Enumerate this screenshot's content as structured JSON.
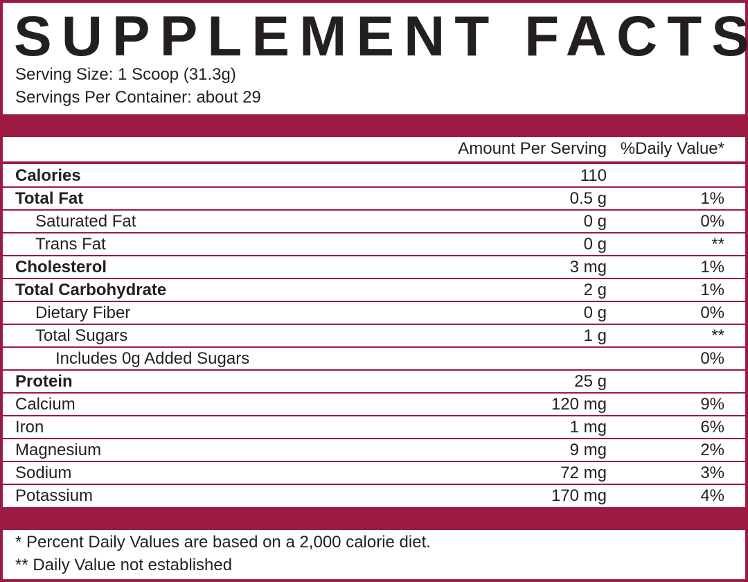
{
  "header": {
    "title": "SUPPLEMENT FACTS",
    "serving_size": "Serving Size: 1 Scoop (31.3g)",
    "servings_per_container": "Servings Per Container: about 29"
  },
  "table": {
    "columns": [
      "Amount Per Serving",
      "%Daily Value*"
    ],
    "rows": [
      [
        "Calories",
        "110",
        null
      ],
      [
        "Total Fat",
        "0.5 g",
        "1%"
      ],
      [
        "Saturated Fat",
        "0 g",
        "0%"
      ],
      [
        "Trans Fat",
        "0 g",
        "**"
      ],
      [
        "Cholesterol",
        "3 mg",
        "1%"
      ],
      [
        "Total Carbohydrate",
        "2 g",
        "1%"
      ],
      [
        "Dietary Fiber",
        "0 g",
        "0%"
      ],
      [
        "Total Sugars",
        "1 g",
        "**"
      ],
      [
        "Includes 0g Added Sugars",
        null,
        "0%"
      ],
      [
        "Protein",
        "25 g",
        null
      ],
      [
        "Calcium",
        "120 mg",
        "9%"
      ],
      [
        "Iron",
        "1 mg",
        "6%"
      ],
      [
        "Magnesium",
        "9 mg",
        "2%"
      ],
      [
        "Sodium",
        "72 mg",
        "3%"
      ],
      [
        "Potassium",
        "170 mg",
        "4%"
      ]
    ]
  },
  "footnotes": [
    "* Percent Daily Values are based on a 2,000 calorie diet.",
    "** Daily Value not established"
  ]
}
